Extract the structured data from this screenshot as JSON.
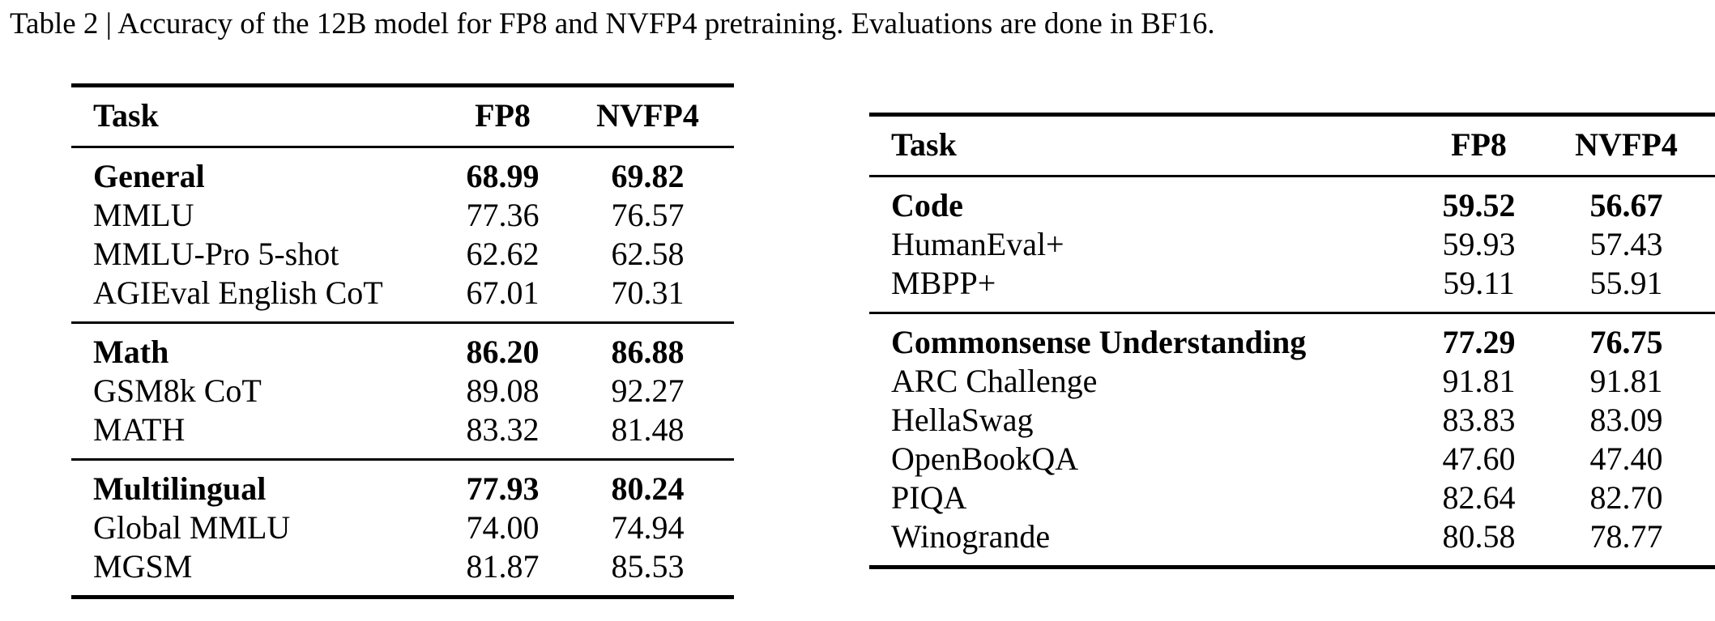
{
  "caption": "Table 2 | Accuracy of the 12B model for FP8 and NVFP4 pretraining. Evaluations are done in BF16.",
  "colors": {
    "background": "#ffffff",
    "text": "#000000",
    "rule": "#000000"
  },
  "tables": [
    {
      "id": "left",
      "headers": {
        "task": "Task",
        "fp8": "FP8",
        "nvfp4": "NVFP4"
      },
      "groups": [
        {
          "rows": [
            {
              "task": "General",
              "fp8": "68.99",
              "nvfp4": "69.82",
              "type": "category"
            },
            {
              "task": "MMLU",
              "fp8": "77.36",
              "nvfp4": "76.57",
              "type": "benchmark"
            },
            {
              "task": "MMLU-Pro 5-shot",
              "fp8": "62.62",
              "nvfp4": "62.58",
              "type": "benchmark"
            },
            {
              "task": "AGIEval English CoT",
              "fp8": "67.01",
              "nvfp4": "70.31",
              "type": "benchmark"
            }
          ]
        },
        {
          "rows": [
            {
              "task": "Math",
              "fp8": "86.20",
              "nvfp4": "86.88",
              "type": "category"
            },
            {
              "task": "GSM8k CoT",
              "fp8": "89.08",
              "nvfp4": "92.27",
              "type": "benchmark"
            },
            {
              "task": "MATH",
              "fp8": "83.32",
              "nvfp4": "81.48",
              "type": "benchmark"
            }
          ]
        },
        {
          "rows": [
            {
              "task": "Multilingual",
              "fp8": "77.93",
              "nvfp4": "80.24",
              "type": "category"
            },
            {
              "task": "Global MMLU",
              "fp8": "74.00",
              "nvfp4": "74.94",
              "type": "benchmark"
            },
            {
              "task": "MGSM",
              "fp8": "81.87",
              "nvfp4": "85.53",
              "type": "benchmark"
            }
          ]
        }
      ]
    },
    {
      "id": "right",
      "headers": {
        "task": "Task",
        "fp8": "FP8",
        "nvfp4": "NVFP4"
      },
      "groups": [
        {
          "rows": [
            {
              "task": "Code",
              "fp8": "59.52",
              "nvfp4": "56.67",
              "type": "category"
            },
            {
              "task": "HumanEval+",
              "fp8": "59.93",
              "nvfp4": "57.43",
              "type": "benchmark"
            },
            {
              "task": "MBPP+",
              "fp8": "59.11",
              "nvfp4": "55.91",
              "type": "benchmark"
            }
          ]
        },
        {
          "rows": [
            {
              "task": "Commonsense Understanding",
              "fp8": "77.29",
              "nvfp4": "76.75",
              "type": "category"
            },
            {
              "task": "ARC Challenge",
              "fp8": "91.81",
              "nvfp4": "91.81",
              "type": "benchmark"
            },
            {
              "task": "HellaSwag",
              "fp8": "83.83",
              "nvfp4": "83.09",
              "type": "benchmark"
            },
            {
              "task": "OpenBookQA",
              "fp8": "47.60",
              "nvfp4": "47.40",
              "type": "benchmark"
            },
            {
              "task": "PIQA",
              "fp8": "82.64",
              "nvfp4": "82.70",
              "type": "benchmark"
            },
            {
              "task": "Winogrande",
              "fp8": "80.58",
              "nvfp4": "78.77",
              "type": "benchmark"
            }
          ]
        }
      ]
    }
  ]
}
